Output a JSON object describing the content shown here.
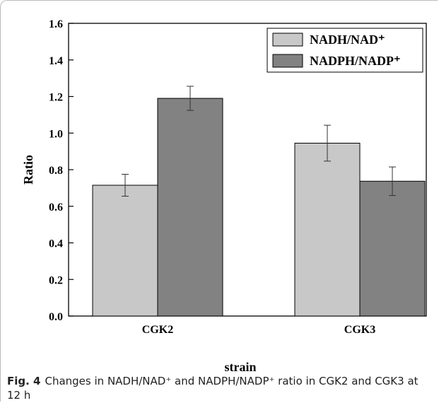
{
  "chart_data": {
    "type": "bar",
    "categories": [
      "CGK2",
      "CGK3"
    ],
    "series": [
      {
        "name": "NADH/NAD⁺",
        "color": "#c8c8c8",
        "values": [
          0.715,
          0.945
        ],
        "errors": [
          0.06,
          0.098
        ]
      },
      {
        "name": "NADPH/NADP⁺",
        "color": "#828282",
        "values": [
          1.19,
          0.737
        ],
        "errors": [
          0.066,
          0.078
        ]
      }
    ],
    "x_label": "strain",
    "y_label": "Ratio",
    "ylim": [
      0,
      1.6
    ],
    "yticks": [
      {
        "value": 0,
        "label": "0.0"
      },
      0.2,
      0.4,
      0.6,
      0.8,
      {
        "value": 1,
        "label": "1.0"
      },
      1.2,
      1.4,
      {
        "value": 1.6,
        "label": "1.6"
      }
    ],
    "legend": "upper right",
    "grid": false
  },
  "caption": {
    "label": "Fig. 4",
    "text": "Changes in NADH/NAD⁺ and NADPH/NADP⁺ ratio in CGK2 and CGK3 at 12 h"
  }
}
